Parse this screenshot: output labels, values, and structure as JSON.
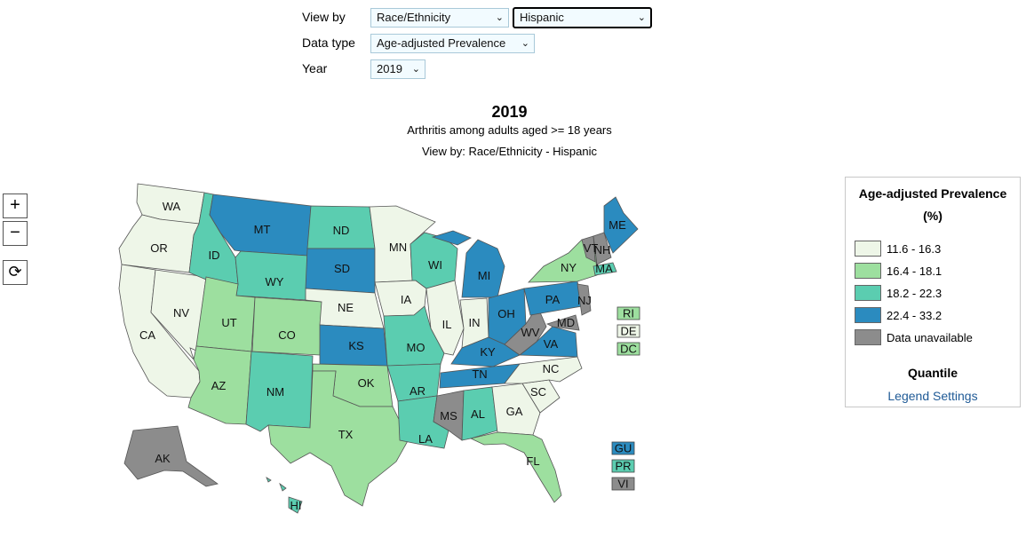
{
  "controls": {
    "view_by_label": "View by",
    "view_by_value": "Race/Ethnicity",
    "subgroup_value": "Hispanic",
    "data_type_label": "Data type",
    "data_type_value": "Age-adjusted Prevalence",
    "year_label": "Year",
    "year_value": "2019"
  },
  "map": {
    "title": "2019",
    "subtitle": "Arthritis among adults aged >= 18 years",
    "view_line": "View by: Race/Ethnicity - Hispanic",
    "zoom_in_icon": "+",
    "zoom_out_icon": "−",
    "reset_icon": "⟳"
  },
  "legend": {
    "title": "Age-adjusted Prevalence",
    "unit": "(%)",
    "classes": [
      {
        "label": "11.6 - 16.3",
        "color": "#eef6e8"
      },
      {
        "label": "16.4 - 18.1",
        "color": "#9ddf9f"
      },
      {
        "label": "18.2 - 22.3",
        "color": "#5bcdb0"
      },
      {
        "label": "22.4 - 33.2",
        "color": "#2b8bbf"
      },
      {
        "label": "Data unavailable",
        "color": "#8c8c8c"
      }
    ],
    "method": "Quantile",
    "settings_link": "Legend Settings"
  },
  "states": {
    "WA": 0,
    "OR": 0,
    "CA": 0,
    "NV": 0,
    "ID": 2,
    "MT": 3,
    "WY": 2,
    "UT": 1,
    "CO": 1,
    "AZ": 1,
    "NM": 2,
    "ND": 2,
    "SD": 3,
    "NE": 0,
    "KS": 3,
    "OK": 1,
    "TX": 1,
    "MN": 0,
    "IA": 0,
    "MO": 2,
    "AR": 2,
    "LA": 2,
    "WI": 2,
    "IL": 0,
    "MI": 3,
    "IN": 0,
    "OH": 3,
    "KY": 3,
    "TN": 3,
    "MS": 4,
    "AL": 2,
    "GA": 0,
    "FL": 1,
    "SC": 0,
    "NC": 0,
    "VA": 3,
    "WV": 4,
    "MD": 4,
    "PA": 3,
    "NY": 1,
    "NJ": 4,
    "ME": 3,
    "VT": 4,
    "NH": 4,
    "MA": 2,
    "AK": 4,
    "HI": 2,
    "RI": 1,
    "DE": 0,
    "DC": 1,
    "GU": 3,
    "PR": 2,
    "VI": 4
  }
}
